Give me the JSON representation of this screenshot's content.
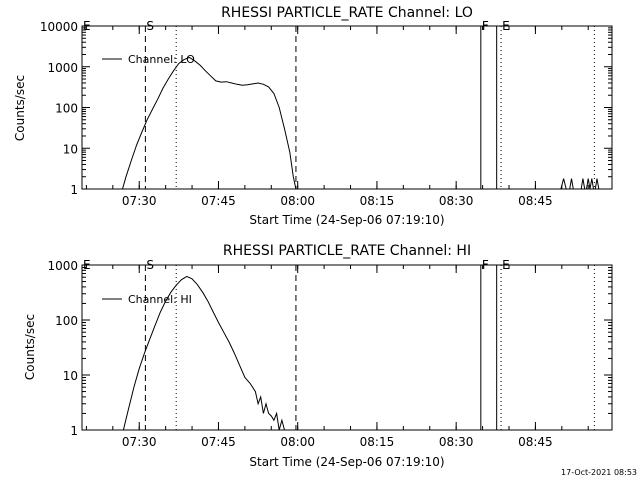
{
  "timestamp": "17-Oct-2021 08:53",
  "chart_data": [
    {
      "type": "line",
      "title": "RHESSI PARTICLE_RATE Channel: LO",
      "xlabel": "Start Time (24-Sep-06 07:19:10)",
      "ylabel": "Counts/sec",
      "y_scale": "log",
      "ylim": [
        1,
        10000
      ],
      "xlim": [
        "07:19:10",
        "08:59:30"
      ],
      "x_ticks": [
        "07:30",
        "07:45",
        "08:00",
        "08:15",
        "08:30",
        "08:45"
      ],
      "y_ticks": [
        "1",
        "10",
        "100",
        "1000",
        "10000"
      ],
      "legend": {
        "entries": [
          "Channel: LO"
        ],
        "position": "top-left"
      },
      "markers": [
        {
          "label": "E",
          "time": "07:19:10",
          "style": "solid"
        },
        {
          "label": "S",
          "time": "07:31:10",
          "style": "dashed"
        },
        {
          "label": "",
          "time": "07:37:00",
          "style": "dotted"
        },
        {
          "label": "",
          "time": "07:59:40",
          "style": "dashed"
        },
        {
          "label": "F",
          "time": "08:34:40",
          "style": "solid"
        },
        {
          "label": "",
          "time": "08:37:40",
          "style": "solid"
        },
        {
          "label": "E",
          "time": "08:38:30",
          "style": "dotted"
        },
        {
          "label": "",
          "time": "08:56:10",
          "style": "dotted"
        }
      ],
      "series": [
        {
          "name": "Channel: LO",
          "segments": [
            [
              [
                "07:26:50",
                1
              ],
              [
                "07:27:30",
                2
              ],
              [
                "07:28:30",
                5
              ],
              [
                "07:29:30",
                12
              ],
              [
                "07:30:30",
                25
              ],
              [
                "07:31:30",
                50
              ],
              [
                "07:32:30",
                90
              ],
              [
                "07:33:30",
                160
              ],
              [
                "07:34:30",
                300
              ],
              [
                "07:35:30",
                500
              ],
              [
                "07:36:30",
                800
              ],
              [
                "07:37:30",
                1200
              ],
              [
                "07:38:30",
                1500
              ],
              [
                "07:39:30",
                1700
              ],
              [
                "07:40:30",
                1400
              ],
              [
                "07:41:30",
                1100
              ],
              [
                "07:42:30",
                800
              ],
              [
                "07:43:30",
                600
              ],
              [
                "07:44:30",
                450
              ],
              [
                "07:45:30",
                420
              ],
              [
                "07:46:30",
                430
              ],
              [
                "07:47:30",
                400
              ],
              [
                "07:48:30",
                370
              ],
              [
                "07:49:30",
                350
              ],
              [
                "07:50:30",
                360
              ],
              [
                "07:51:30",
                380
              ],
              [
                "07:52:30",
                400
              ],
              [
                "07:53:30",
                370
              ],
              [
                "07:54:30",
                320
              ],
              [
                "07:55:30",
                220
              ],
              [
                "07:56:30",
                100
              ],
              [
                "07:57:30",
                30
              ],
              [
                "07:58:30",
                8
              ],
              [
                "07:59:10",
                2
              ],
              [
                "07:59:40",
                1
              ]
            ],
            [
              [
                "08:49:50",
                1
              ],
              [
                "08:50:20",
                1.8
              ],
              [
                "08:50:50",
                1
              ]
            ],
            [
              [
                "08:51:30",
                1
              ],
              [
                "08:51:50",
                1.8
              ],
              [
                "08:52:10",
                1
              ]
            ],
            [
              [
                "08:53:40",
                1
              ],
              [
                "08:54:00",
                1.8
              ],
              [
                "08:54:20",
                1
              ]
            ],
            [
              [
                "08:54:40",
                1
              ],
              [
                "08:55:00",
                1.8
              ],
              [
                "08:55:20",
                1
              ],
              [
                "08:55:40",
                1.8
              ],
              [
                "08:56:00",
                1
              ]
            ],
            [
              [
                "08:56:20",
                1
              ],
              [
                "08:56:40",
                1.8
              ],
              [
                "08:57:00",
                1
              ]
            ]
          ]
        }
      ]
    },
    {
      "type": "line",
      "title": "RHESSI PARTICLE_RATE Channel: HI",
      "xlabel": "Start Time (24-Sep-06 07:19:10)",
      "ylabel": "Counts/sec",
      "y_scale": "log",
      "ylim": [
        1,
        1000
      ],
      "xlim": [
        "07:19:10",
        "08:59:30"
      ],
      "x_ticks": [
        "07:30",
        "07:45",
        "08:00",
        "08:15",
        "08:30",
        "08:45"
      ],
      "y_ticks": [
        "1",
        "10",
        "100",
        "1000"
      ],
      "legend": {
        "entries": [
          "Channel: HI"
        ],
        "position": "top-left"
      },
      "markers": [
        {
          "label": "E",
          "time": "07:19:10",
          "style": "solid"
        },
        {
          "label": "S",
          "time": "07:31:10",
          "style": "dashed"
        },
        {
          "label": "",
          "time": "07:37:00",
          "style": "dotted"
        },
        {
          "label": "",
          "time": "07:59:40",
          "style": "dashed"
        },
        {
          "label": "F",
          "time": "08:34:40",
          "style": "solid"
        },
        {
          "label": "",
          "time": "08:37:40",
          "style": "solid"
        },
        {
          "label": "E",
          "time": "08:38:30",
          "style": "dotted"
        },
        {
          "label": "",
          "time": "08:56:10",
          "style": "dotted"
        }
      ],
      "series": [
        {
          "name": "Channel: HI",
          "segments": [
            [
              [
                "07:27:00",
                1
              ],
              [
                "07:28:00",
                2.5
              ],
              [
                "07:29:00",
                6
              ],
              [
                "07:30:00",
                13
              ],
              [
                "07:31:00",
                25
              ],
              [
                "07:32:00",
                45
              ],
              [
                "07:33:00",
                80
              ],
              [
                "07:34:00",
                140
              ],
              [
                "07:35:00",
                220
              ],
              [
                "07:36:00",
                320
              ],
              [
                "07:37:00",
                430
              ],
              [
                "07:38:00",
                540
              ],
              [
                "07:39:00",
                620
              ],
              [
                "07:40:00",
                560
              ],
              [
                "07:41:00",
                440
              ],
              [
                "07:42:00",
                320
              ],
              [
                "07:43:00",
                220
              ],
              [
                "07:44:00",
                140
              ],
              [
                "07:45:00",
                90
              ],
              [
                "07:46:00",
                60
              ],
              [
                "07:47:00",
                40
              ],
              [
                "07:48:00",
                25
              ],
              [
                "07:49:00",
                15
              ],
              [
                "07:50:00",
                9
              ],
              [
                "07:51:00",
                7
              ],
              [
                "07:52:00",
                5
              ],
              [
                "07:52:30",
                3
              ],
              [
                "07:53:00",
                4
              ],
              [
                "07:53:30",
                2
              ],
              [
                "07:54:00",
                3
              ],
              [
                "07:54:30",
                2
              ],
              [
                "07:55:00",
                1.8
              ],
              [
                "07:55:30",
                1.5
              ],
              [
                "07:56:00",
                2
              ],
              [
                "07:56:30",
                1
              ],
              [
                "07:57:00",
                1.5
              ],
              [
                "07:57:30",
                1
              ]
            ]
          ]
        }
      ]
    }
  ]
}
